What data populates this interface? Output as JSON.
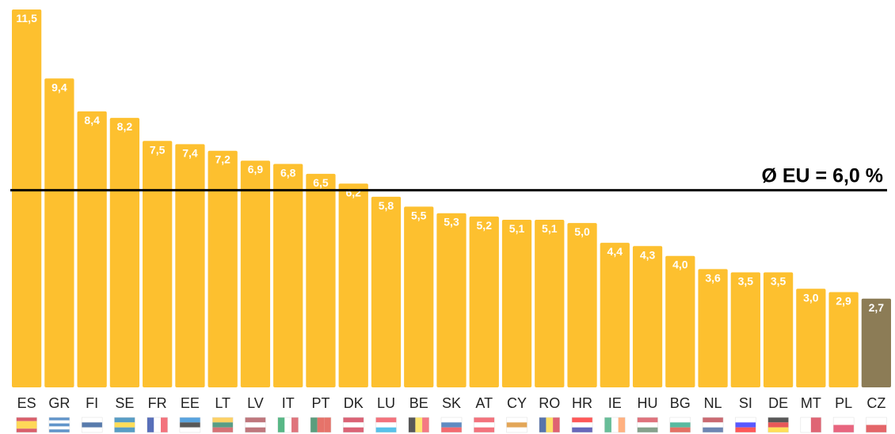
{
  "chart_data": {
    "type": "bar",
    "categories": [
      "ES",
      "GR",
      "FI",
      "SE",
      "FR",
      "EE",
      "LT",
      "LV",
      "IT",
      "PT",
      "DK",
      "LU",
      "BE",
      "SK",
      "AT",
      "CY",
      "RO",
      "HR",
      "IE",
      "HU",
      "BG",
      "NL",
      "SI",
      "DE",
      "MT",
      "PL",
      "CZ"
    ],
    "values": [
      11.5,
      9.4,
      8.4,
      8.2,
      7.5,
      7.4,
      7.2,
      6.9,
      6.8,
      6.5,
      6.2,
      5.8,
      5.5,
      5.3,
      5.2,
      5.1,
      5.1,
      5.0,
      4.4,
      4.3,
      4.0,
      3.6,
      3.5,
      3.5,
      3.0,
      2.9,
      2.7
    ],
    "value_labels": [
      "11,5",
      "9,4",
      "8,4",
      "8,2",
      "7,5",
      "7,4",
      "7,2",
      "6,9",
      "6,8",
      "6,5",
      "6,2",
      "5,8",
      "5,5",
      "5,3",
      "5,2",
      "5,1",
      "5,1",
      "5,0",
      "4,4",
      "4,3",
      "4,0",
      "3,6",
      "3,5",
      "3,5",
      "3,0",
      "2,9",
      "2,7"
    ],
    "colors": [
      "#fdc02f",
      "#fdc02f",
      "#fdc02f",
      "#fdc02f",
      "#fdc02f",
      "#fdc02f",
      "#fdc02f",
      "#fdc02f",
      "#fdc02f",
      "#fdc02f",
      "#fdc02f",
      "#fdc02f",
      "#fdc02f",
      "#fdc02f",
      "#fdc02f",
      "#fdc02f",
      "#fdc02f",
      "#fdc02f",
      "#fdc02f",
      "#fdc02f",
      "#fdc02f",
      "#fdc02f",
      "#fdc02f",
      "#fdc02f",
      "#fdc02f",
      "#fdc02f",
      "#8c7c56"
    ],
    "ylim": [
      0,
      11.5
    ],
    "reference_line": {
      "value": 6.0,
      "label": "Ø EU = 6,0 %",
      "color": "#000000"
    }
  }
}
